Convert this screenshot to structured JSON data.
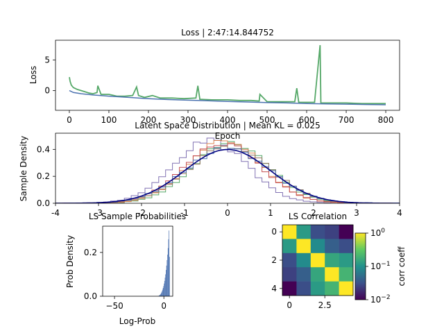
{
  "chart_data": [
    {
      "type": "line",
      "title": "Loss | 2:47:14.844752",
      "xlabel": "Epoch",
      "ylabel": "Loss",
      "xlim": [
        -35,
        835
      ],
      "ylim": [
        -3.2,
        8.2
      ],
      "xticks": [
        0,
        100,
        200,
        300,
        400,
        500,
        600,
        700,
        800
      ],
      "yticks": [
        0,
        5
      ],
      "series": [
        {
          "color": "#55a868",
          "x": [
            0,
            2,
            5,
            10,
            20,
            30,
            40,
            50,
            60,
            70,
            72,
            80,
            100,
            120,
            140,
            160,
            170,
            175,
            190,
            210,
            230,
            260,
            290,
            320,
            325,
            330,
            360,
            400,
            430,
            460,
            480,
            482,
            500,
            540,
            570,
            575,
            580,
            600,
            620,
            634,
            636,
            640,
            660,
            700,
            740,
            770,
            800
          ],
          "y": [
            2.2,
            1.5,
            0.9,
            0.5,
            0.2,
            0.0,
            -0.2,
            -0.4,
            -0.5,
            -0.3,
            0.8,
            -0.6,
            -0.6,
            -0.9,
            -0.9,
            -0.8,
            0.6,
            -0.8,
            -1.1,
            -0.8,
            -1.2,
            -1.2,
            -1.3,
            -1.2,
            0.8,
            -1.4,
            -1.5,
            -1.5,
            -1.6,
            -1.6,
            -1.7,
            -0.6,
            -1.8,
            -1.8,
            -1.8,
            0.4,
            -1.9,
            -1.9,
            -1.9,
            7.4,
            -2.0,
            -2.0,
            -2.0,
            -2.0,
            -2.1,
            -2.1,
            -2.1
          ]
        },
        {
          "color": "#4c72b0",
          "x": [
            0,
            10,
            30,
            60,
            100,
            150,
            200,
            250,
            300,
            350,
            400,
            450,
            500,
            550,
            600,
            650,
            700,
            750,
            800
          ],
          "y": [
            0.0,
            -0.3,
            -0.5,
            -0.7,
            -0.9,
            -1.1,
            -1.3,
            -1.45,
            -1.55,
            -1.65,
            -1.75,
            -1.85,
            -1.95,
            -2.0,
            -2.1,
            -2.15,
            -2.2,
            -2.25,
            -2.3
          ]
        }
      ]
    },
    {
      "type": "line",
      "title": "Latent Space Distribution | Mean KL = 0.025",
      "xlabel": "",
      "ylabel": "Sample Density",
      "xlim": [
        -4,
        4
      ],
      "ylim": [
        0,
        0.52
      ],
      "xticks": [
        -4,
        -3,
        -2,
        -1,
        0,
        1,
        2,
        3,
        4
      ],
      "yticks": [
        0.0,
        0.2,
        0.4
      ],
      "reference": {
        "color": "#000080",
        "mean": 0.0,
        "std": 1.0
      },
      "series": [
        {
          "color": "#8172b3",
          "mean": -0.4,
          "std": 0.85,
          "seed": 3
        },
        {
          "color": "#55a868",
          "mean": 0.08,
          "std": 0.88,
          "seed": 7
        },
        {
          "color": "#dd8452",
          "mean": -0.05,
          "std": 0.86,
          "seed": 11
        },
        {
          "color": "#c44e52",
          "mean": -0.12,
          "std": 0.9,
          "seed": 17
        },
        {
          "color": "#937860",
          "mean": 0.05,
          "std": 0.95,
          "seed": 23
        },
        {
          "color": "#4c72b0",
          "mean": 0.0,
          "std": 0.98,
          "seed": 29
        }
      ]
    },
    {
      "type": "bar",
      "title": "LS Sample Probabilities",
      "xlabel": "Log-Prob",
      "ylabel": "Prob Density",
      "xlim": [
        -62,
        9
      ],
      "ylim": [
        0,
        0.32
      ],
      "xticks": [
        -50,
        0
      ],
      "yticks": [
        0.0,
        0.2
      ],
      "color": "#4c72b0",
      "bin_start": -6,
      "bin_width": 0.5,
      "values": [
        0.001,
        0.002,
        0.003,
        0.005,
        0.007,
        0.01,
        0.014,
        0.018,
        0.024,
        0.03,
        0.038,
        0.047,
        0.058,
        0.07,
        0.085,
        0.1,
        0.12,
        0.14,
        0.165,
        0.19,
        0.22,
        0.26,
        0.3,
        0.18
      ]
    },
    {
      "type": "heatmap",
      "title": "LS Correlation",
      "xticks": [
        0.0,
        2.5
      ],
      "yticks": [
        0,
        2,
        4
      ],
      "colorbar_label": "corr coeff",
      "colorbar_ticks": [
        "10^0",
        "10^-1",
        "10^-2"
      ],
      "scale": "log",
      "vmin": 0.01,
      "vmax": 1,
      "colormap": "viridis",
      "matrix": [
        [
          1.0,
          0.12,
          0.03,
          0.025,
          0.01
        ],
        [
          0.12,
          1.0,
          0.09,
          0.04,
          0.03
        ],
        [
          0.03,
          0.09,
          1.0,
          0.15,
          0.12
        ],
        [
          0.025,
          0.04,
          0.15,
          1.0,
          0.2
        ],
        [
          0.01,
          0.03,
          0.12,
          0.2,
          1.0
        ]
      ]
    }
  ]
}
